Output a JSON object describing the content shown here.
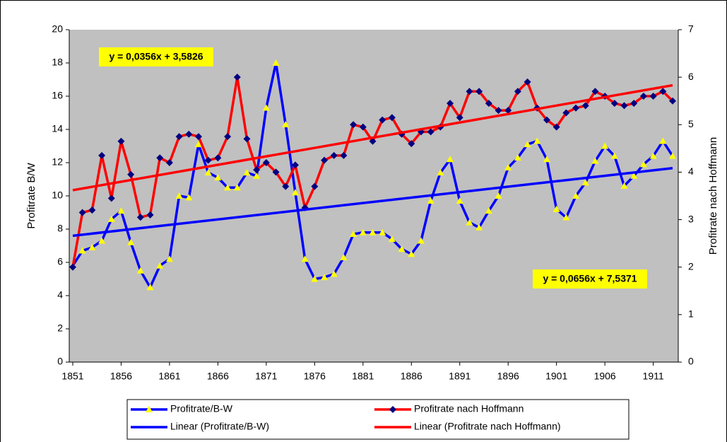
{
  "chart_data": {
    "type": "line",
    "x": [
      1851,
      1852,
      1853,
      1854,
      1855,
      1856,
      1857,
      1858,
      1859,
      1860,
      1861,
      1862,
      1863,
      1864,
      1865,
      1866,
      1867,
      1868,
      1869,
      1870,
      1871,
      1872,
      1873,
      1874,
      1875,
      1876,
      1877,
      1878,
      1879,
      1880,
      1881,
      1882,
      1883,
      1884,
      1885,
      1886,
      1887,
      1888,
      1889,
      1890,
      1891,
      1892,
      1893,
      1894,
      1895,
      1896,
      1897,
      1898,
      1899,
      1900,
      1901,
      1902,
      1903,
      1904,
      1905,
      1906,
      1907,
      1908,
      1909,
      1910,
      1911,
      1912,
      1913
    ],
    "xlim": [
      1851,
      1913
    ],
    "xticks": [
      1851,
      1856,
      1861,
      1866,
      1871,
      1876,
      1881,
      1886,
      1891,
      1896,
      1901,
      1906,
      1911
    ],
    "ylabel": "Profitrate B/W",
    "ylim": [
      0,
      20
    ],
    "yticks": [
      0,
      2,
      4,
      6,
      8,
      10,
      12,
      14,
      16,
      18,
      20
    ],
    "y2label": "Profitrate nach Hoffmann",
    "y2lim": [
      0,
      7
    ],
    "y2ticks": [
      0,
      1,
      2,
      3,
      4,
      5,
      6,
      7
    ],
    "background": "#c0c0c0",
    "series": [
      {
        "name": "Profitrate/B-W",
        "color": "#0000ff",
        "marker": "triangle",
        "marker_color": "#ffff00",
        "values": [
          5.8,
          6.7,
          6.9,
          7.3,
          8.6,
          9.1,
          7.2,
          5.5,
          4.5,
          5.8,
          6.2,
          10.0,
          9.9,
          13.1,
          11.4,
          11.1,
          10.5,
          10.5,
          11.4,
          11.2,
          15.3,
          18.0,
          14.3,
          10.2,
          6.2,
          5.0,
          5.1,
          5.3,
          6.3,
          7.7,
          7.8,
          7.8,
          7.8,
          7.4,
          6.8,
          6.5,
          7.3,
          9.7,
          11.4,
          12.2,
          9.7,
          8.4,
          8.1,
          9.1,
          10.0,
          11.7,
          12.3,
          13.1,
          13.3,
          12.2,
          9.2,
          8.7,
          10.0,
          10.8,
          12.1,
          13.0,
          12.4,
          10.6,
          11.2,
          11.9,
          12.4,
          13.3,
          12.4
        ]
      },
      {
        "name": "Profitrate nach Hoffmann",
        "color": "#ff0000",
        "marker": "diamond",
        "marker_color": "#000080",
        "axis": "y2",
        "values": [
          2.0,
          3.15,
          3.2,
          4.35,
          3.45,
          4.65,
          3.95,
          3.05,
          3.1,
          4.3,
          4.2,
          4.75,
          4.8,
          4.75,
          4.25,
          4.3,
          4.75,
          6.0,
          4.7,
          4.05,
          4.2,
          4.0,
          3.7,
          4.15,
          3.25,
          3.7,
          4.25,
          4.35,
          4.35,
          5.0,
          4.95,
          4.65,
          5.1,
          5.15,
          4.8,
          4.6,
          4.85,
          4.85,
          4.95,
          5.45,
          5.15,
          5.7,
          5.7,
          5.45,
          5.3,
          5.3,
          5.7,
          5.9,
          5.35,
          5.1,
          4.95,
          5.25,
          5.35,
          5.4,
          5.7,
          5.6,
          5.45,
          5.4,
          5.45,
          5.6,
          5.6,
          5.7,
          5.5
        ]
      },
      {
        "name": "Linear (Profitrate/B-W)",
        "color": "#0000ff",
        "x": [
          1851,
          1913
        ],
        "values": [
          7.6,
          11.67
        ]
      },
      {
        "name": "Linear (Profitrate nach Hoffmann)",
        "color": "#ff0000",
        "axis": "y2",
        "x": [
          1851,
          1913
        ],
        "values": [
          3.62,
          5.83
        ]
      }
    ],
    "annotations": [
      {
        "text": "y = 0,0356x + 3,5826",
        "color": "#ffff00"
      },
      {
        "text": "y = 0,0656x + 7,5371",
        "color": "#ffff00"
      }
    ]
  }
}
